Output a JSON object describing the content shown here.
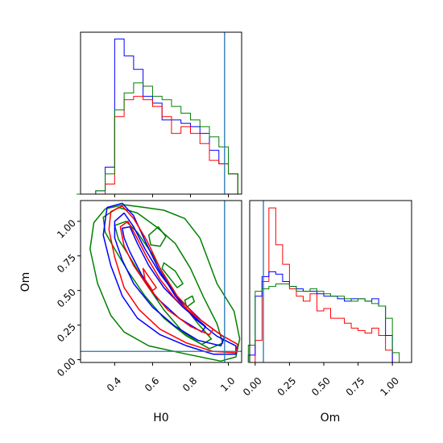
{
  "chart_data": {
    "type": "corner",
    "parameters": [
      "H0",
      "Om"
    ],
    "truth": {
      "H0": 0.98,
      "Om": 0.06
    },
    "colors": {
      "blue": "#0000ff",
      "red": "#ff0000",
      "green": "#008000",
      "truth": "#1f77b4"
    },
    "hist_H0": {
      "bin_edges": [
        0.2,
        0.25,
        0.3,
        0.35,
        0.4,
        0.45,
        0.5,
        0.55,
        0.6,
        0.65,
        0.7,
        0.75,
        0.8,
        0.85,
        0.9,
        0.95,
        1.0,
        1.05
      ],
      "series": [
        {
          "color": "blue",
          "counts": [
            0,
            0,
            1,
            8,
            46,
            41,
            37,
            29,
            27,
            22,
            22,
            21,
            20,
            18,
            13,
            9,
            6
          ]
        },
        {
          "color": "red",
          "counts": [
            0,
            0,
            0,
            3,
            23,
            28,
            29,
            28,
            26,
            23,
            18,
            20,
            18,
            15,
            10,
            9,
            6
          ]
        },
        {
          "color": "green",
          "counts": [
            0,
            0,
            1,
            6,
            25,
            30,
            33,
            32,
            29,
            28,
            26,
            24,
            22,
            20,
            17,
            14,
            6
          ]
        }
      ],
      "xlim": [
        0.22,
        1.07
      ]
    },
    "hist_Om": {
      "bin_edges": [
        -0.05,
        0.0,
        0.05,
        0.1,
        0.15,
        0.2,
        0.25,
        0.3,
        0.35,
        0.4,
        0.45,
        0.5,
        0.55,
        0.6,
        0.65,
        0.7,
        0.75,
        0.8,
        0.85,
        0.9,
        0.95,
        1.0,
        1.05,
        1.1
      ],
      "series": [
        {
          "color": "red",
          "counts": [
            0,
            9,
            33,
            63,
            48,
            40,
            30,
            27,
            25,
            28,
            21,
            22,
            18,
            18,
            16,
            14,
            13,
            12,
            14,
            11,
            5,
            0,
            0
          ]
        },
        {
          "color": "blue",
          "counts": [
            3,
            27,
            35,
            37,
            36,
            33,
            31,
            30,
            29,
            29,
            28,
            27,
            27,
            26,
            25,
            26,
            26,
            25,
            26,
            23,
            11,
            0,
            0
          ]
        },
        {
          "color": "green",
          "counts": [
            7,
            29,
            30,
            31,
            32,
            32,
            31,
            29,
            29,
            30,
            29,
            28,
            27,
            27,
            26,
            25,
            26,
            25,
            24,
            23,
            18,
            4,
            0
          ]
        }
      ],
      "xlim": [
        -0.04,
        1.14
      ]
    },
    "joint": {
      "xlim": [
        0.22,
        1.07
      ],
      "ylim": [
        -0.02,
        1.15
      ],
      "contours": [
        {
          "color": "green",
          "points": [
            [
              0.29,
              0.99
            ],
            [
              0.35,
              1.09
            ],
            [
              0.45,
              1.12
            ],
            [
              0.56,
              1.1
            ],
            [
              0.66,
              1.08
            ],
            [
              0.77,
              1.02
            ],
            [
              0.85,
              0.88
            ],
            [
              0.94,
              0.55
            ],
            [
              1.03,
              0.35
            ],
            [
              1.06,
              0.15
            ],
            [
              1.04,
              0.02
            ],
            [
              0.96,
              -0.01
            ],
            [
              0.78,
              0.04
            ],
            [
              0.58,
              0.1
            ],
            [
              0.45,
              0.2
            ],
            [
              0.38,
              0.32
            ],
            [
              0.31,
              0.55
            ],
            [
              0.27,
              0.8
            ]
          ]
        },
        {
          "color": "green",
          "points": [
            [
              0.34,
              1.03
            ],
            [
              0.42,
              1.1
            ],
            [
              0.52,
              1.06
            ],
            [
              0.62,
              0.96
            ],
            [
              0.72,
              0.84
            ],
            [
              0.8,
              0.66
            ],
            [
              0.87,
              0.45
            ],
            [
              0.94,
              0.26
            ],
            [
              0.97,
              0.12
            ],
            [
              0.9,
              0.08
            ],
            [
              0.78,
              0.17
            ],
            [
              0.66,
              0.3
            ],
            [
              0.56,
              0.46
            ],
            [
              0.47,
              0.64
            ],
            [
              0.4,
              0.8
            ],
            [
              0.35,
              0.92
            ]
          ]
        },
        {
          "color": "green",
          "points": [
            [
              0.4,
              0.97
            ],
            [
              0.46,
              1.0
            ],
            [
              0.52,
              0.92
            ],
            [
              0.6,
              0.76
            ],
            [
              0.68,
              0.56
            ],
            [
              0.76,
              0.4
            ],
            [
              0.84,
              0.26
            ],
            [
              0.91,
              0.15
            ],
            [
              0.86,
              0.11
            ],
            [
              0.76,
              0.2
            ],
            [
              0.66,
              0.36
            ],
            [
              0.56,
              0.56
            ],
            [
              0.48,
              0.74
            ],
            [
              0.42,
              0.87
            ]
          ]
        },
        {
          "color": "green",
          "points": [
            [
              0.66,
              0.7
            ],
            [
              0.72,
              0.64
            ],
            [
              0.76,
              0.55
            ],
            [
              0.73,
              0.52
            ],
            [
              0.69,
              0.59
            ],
            [
              0.65,
              0.66
            ]
          ]
        },
        {
          "color": "green",
          "points": [
            [
              0.78,
              0.38
            ],
            [
              0.82,
              0.42
            ],
            [
              0.81,
              0.46
            ],
            [
              0.77,
              0.43
            ]
          ]
        },
        {
          "color": "green",
          "points": [
            [
              0.58,
              0.9
            ],
            [
              0.63,
              0.96
            ],
            [
              0.67,
              0.89
            ],
            [
              0.64,
              0.82
            ],
            [
              0.59,
              0.83
            ]
          ]
        },
        {
          "color": "blue",
          "points": [
            [
              0.36,
              1.1
            ],
            [
              0.44,
              1.13
            ],
            [
              0.5,
              1.04
            ],
            [
              0.56,
              0.86
            ],
            [
              0.63,
              0.66
            ],
            [
              0.72,
              0.46
            ],
            [
              0.82,
              0.3
            ],
            [
              0.94,
              0.17
            ],
            [
              1.04,
              0.1
            ],
            [
              1.04,
              0.04
            ],
            [
              0.92,
              0.04
            ],
            [
              0.78,
              0.1
            ],
            [
              0.64,
              0.18
            ],
            [
              0.52,
              0.3
            ],
            [
              0.44,
              0.46
            ],
            [
              0.38,
              0.68
            ],
            [
              0.34,
              0.9
            ]
          ]
        },
        {
          "color": "blue",
          "points": [
            [
              0.4,
              1.0
            ],
            [
              0.45,
              1.06
            ],
            [
              0.5,
              0.96
            ],
            [
              0.56,
              0.8
            ],
            [
              0.64,
              0.62
            ],
            [
              0.74,
              0.44
            ],
            [
              0.86,
              0.28
            ],
            [
              0.98,
              0.16
            ],
            [
              0.96,
              0.1
            ],
            [
              0.84,
              0.14
            ],
            [
              0.72,
              0.24
            ],
            [
              0.6,
              0.38
            ],
            [
              0.5,
              0.55
            ],
            [
              0.44,
              0.72
            ],
            [
              0.4,
              0.88
            ]
          ]
        },
        {
          "color": "blue",
          "points": [
            [
              0.44,
              0.95
            ],
            [
              0.48,
              0.96
            ],
            [
              0.52,
              0.84
            ],
            [
              0.58,
              0.68
            ],
            [
              0.66,
              0.52
            ],
            [
              0.76,
              0.38
            ],
            [
              0.88,
              0.24
            ],
            [
              0.86,
              0.2
            ],
            [
              0.74,
              0.3
            ],
            [
              0.62,
              0.45
            ],
            [
              0.54,
              0.62
            ],
            [
              0.48,
              0.78
            ],
            [
              0.45,
              0.88
            ]
          ]
        },
        {
          "color": "red",
          "points": [
            [
              0.38,
              1.07
            ],
            [
              0.44,
              1.11
            ],
            [
              0.5,
              1.02
            ],
            [
              0.57,
              0.86
            ],
            [
              0.64,
              0.66
            ],
            [
              0.73,
              0.46
            ],
            [
              0.84,
              0.3
            ],
            [
              0.96,
              0.18
            ],
            [
              1.05,
              0.11
            ],
            [
              1.04,
              0.05
            ],
            [
              0.92,
              0.06
            ],
            [
              0.78,
              0.12
            ],
            [
              0.64,
              0.22
            ],
            [
              0.53,
              0.36
            ],
            [
              0.45,
              0.52
            ],
            [
              0.4,
              0.74
            ],
            [
              0.37,
              0.94
            ]
          ]
        },
        {
          "color": "red",
          "points": [
            [
              0.43,
              0.96
            ],
            [
              0.47,
              1.0
            ],
            [
              0.51,
              0.9
            ],
            [
              0.57,
              0.74
            ],
            [
              0.64,
              0.58
            ],
            [
              0.72,
              0.44
            ],
            [
              0.82,
              0.32
            ],
            [
              0.92,
              0.22
            ],
            [
              0.9,
              0.18
            ],
            [
              0.8,
              0.24
            ],
            [
              0.68,
              0.36
            ],
            [
              0.58,
              0.52
            ],
            [
              0.5,
              0.68
            ],
            [
              0.45,
              0.82
            ]
          ]
        },
        {
          "color": "red",
          "points": [
            [
              0.55,
              0.66
            ],
            [
              0.58,
              0.6
            ],
            [
              0.62,
              0.52
            ],
            [
              0.6,
              0.5
            ],
            [
              0.56,
              0.58
            ]
          ]
        }
      ]
    },
    "ticks": {
      "H0": [
        0.4,
        0.6,
        0.8,
        1.0
      ],
      "Om": [
        0.0,
        0.25,
        0.5,
        0.75,
        1.0
      ],
      "H0_labels": [
        "0.4",
        "0.6",
        "0.8",
        "1.0"
      ],
      "Om_labels": [
        "0.00",
        "0.25",
        "0.50",
        "0.75",
        "1.00"
      ]
    },
    "labels": {
      "x_left": "H0",
      "x_right": "Om",
      "y_joint": "Om"
    }
  }
}
